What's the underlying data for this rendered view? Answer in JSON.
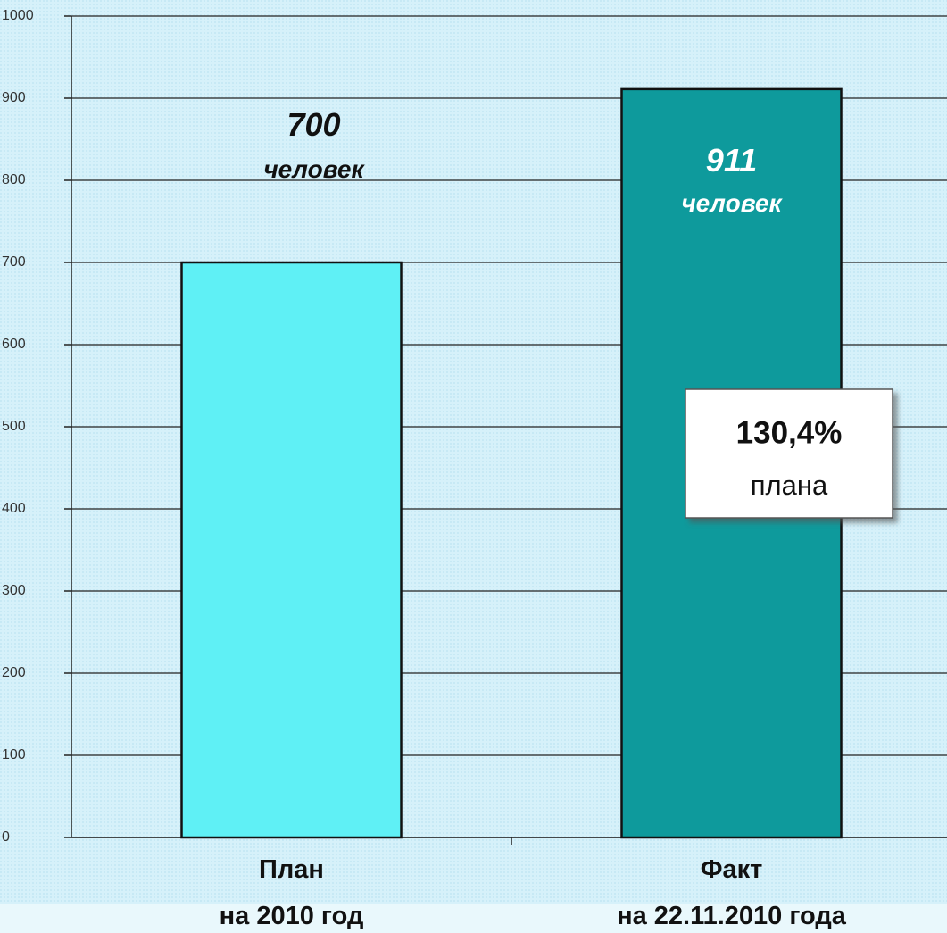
{
  "chart_data": {
    "type": "bar",
    "categories": [
      "План\nна 2010 год",
      "Факт\nна 22.11.2010 года"
    ],
    "values": [
      700,
      911
    ],
    "value_labels": [
      "700\nчеловек",
      "911\nчеловек"
    ],
    "colors": [
      "#5ff0f5",
      "#0e9a9c"
    ],
    "ylim": [
      0,
      1000
    ],
    "yticks": [
      0,
      100,
      200,
      300,
      400,
      500,
      600,
      700,
      800,
      900,
      1000
    ],
    "grid": true,
    "annotation": {
      "text": "130,4%",
      "subtext": "плана"
    }
  }
}
